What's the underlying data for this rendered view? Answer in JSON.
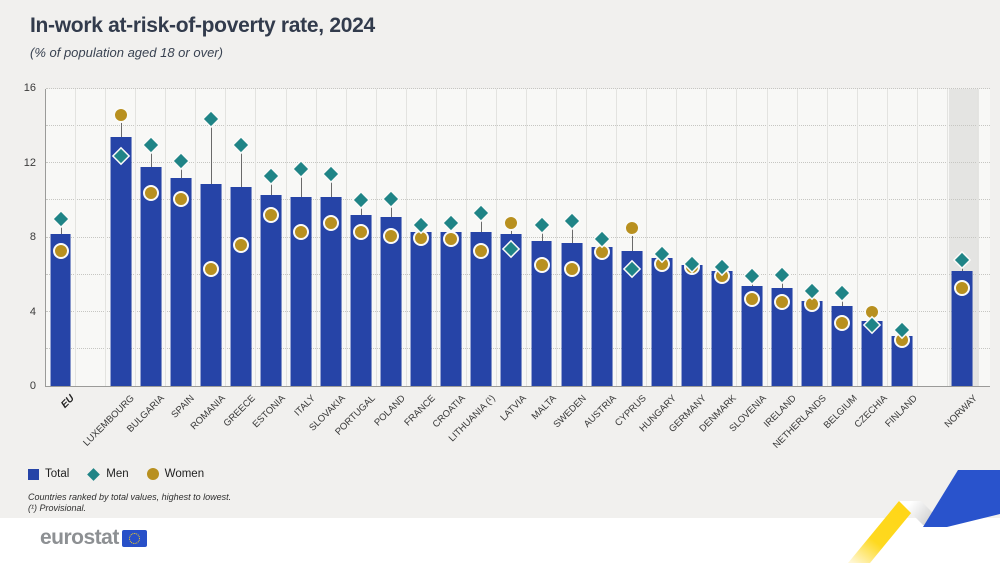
{
  "title": "In-work at-risk-of-poverty rate, 2024",
  "subtitle": "(% of population aged 18 or over)",
  "legend": {
    "total_label": "Total",
    "men_label": "Men",
    "women_label": "Women"
  },
  "footnotes": [
    "Countries ranked by total values, highest to lowest.",
    "(¹) Provisional."
  ],
  "branding": {
    "logo_text": "eurostat"
  },
  "colors": {
    "bar_total": "#2644a7",
    "marker_men": "#1f8486",
    "marker_women": "#b8901f",
    "norway_band": "#e4e4e2",
    "ribbon_yellow": "#ffd617",
    "ribbon_blue": "#2953cc",
    "flag_blue": "#2850c8"
  },
  "chart_data": {
    "type": "bar",
    "title": "In-work at-risk-of-poverty rate, 2024",
    "ylabel": "% of population aged 18 or over",
    "ylim": [
      0,
      16
    ],
    "ytick_labeled_step": 4,
    "ytick_grid_step": 2,
    "grid": true,
    "legend_position": "bottom-left",
    "categories": [
      "EU",
      "LUXEMBOURG",
      "BULGARIA",
      "SPAIN",
      "ROMANIA",
      "GREECE",
      "ESTONIA",
      "ITALY",
      "SLOVAKIA",
      "PORTUGAL",
      "POLAND",
      "FRANCE",
      "CROATIA",
      "LITHUANIA (¹)",
      "LATVIA",
      "MALTA",
      "SWEDEN",
      "AUSTRIA",
      "CYPRUS",
      "HUNGARY",
      "GERMANY",
      "DENMARK",
      "SLOVENIA",
      "IRELAND",
      "NETHERLANDS",
      "BELGIUM",
      "CZECHIA",
      "FINLAND",
      "NORWAY"
    ],
    "series": [
      {
        "name": "Total",
        "marker": "bar",
        "color": "#2644a7",
        "values": [
          8.2,
          13.4,
          11.8,
          11.2,
          10.9,
          10.7,
          10.3,
          10.2,
          10.2,
          9.2,
          9.1,
          8.3,
          8.3,
          8.3,
          8.2,
          7.8,
          7.7,
          7.5,
          7.3,
          6.9,
          6.5,
          6.2,
          5.4,
          5.3,
          4.6,
          4.3,
          3.5,
          2.7,
          6.2
        ]
      },
      {
        "name": "Men",
        "marker": "diamond",
        "color": "#1f8486",
        "values": [
          9.0,
          12.4,
          13.0,
          12.1,
          14.4,
          13.0,
          11.3,
          11.7,
          11.4,
          10.0,
          10.1,
          8.7,
          8.8,
          9.3,
          7.4,
          8.7,
          8.9,
          7.9,
          6.3,
          7.1,
          6.6,
          6.4,
          5.9,
          6.0,
          5.1,
          5.0,
          3.3,
          3.0,
          6.8
        ]
      },
      {
        "name": "Women",
        "marker": "circle",
        "color": "#b8901f",
        "values": [
          7.3,
          14.6,
          10.4,
          10.1,
          6.3,
          7.6,
          9.2,
          8.3,
          8.8,
          8.3,
          8.1,
          8.0,
          7.9,
          7.3,
          8.8,
          6.5,
          6.3,
          7.2,
          8.5,
          6.6,
          6.4,
          5.9,
          4.7,
          4.5,
          4.4,
          3.4,
          4.0,
          2.5,
          5.3
        ]
      }
    ],
    "gap_after_indices": [
      0,
      27
    ],
    "highlighted_category": "NORWAY"
  }
}
